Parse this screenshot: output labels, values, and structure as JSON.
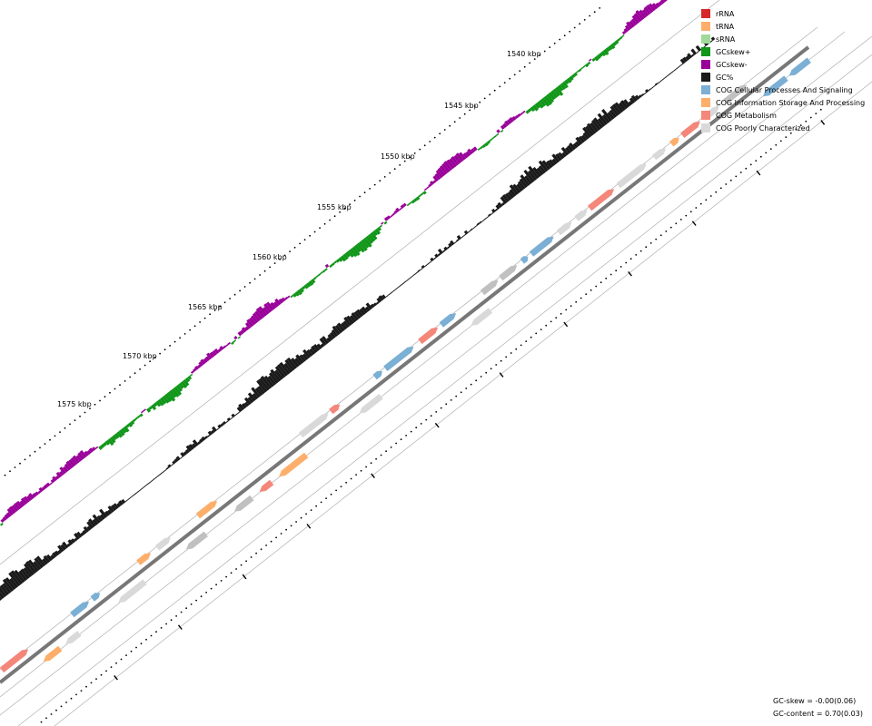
{
  "map": {
    "scale_labels": [
      "1540 kbp",
      "1545 kbp",
      "1550 kbp",
      "1555 kbp",
      "1560 kbp",
      "1565 kbp",
      "1570 kbp",
      "1575 kbp"
    ]
  },
  "legend": [
    {
      "label": "rRNA",
      "color": "#d62728"
    },
    {
      "label": "tRNA",
      "color": "#fdae6b"
    },
    {
      "label": "sRNA",
      "color": "#a1d99b"
    },
    {
      "label": "GCskew+",
      "color": "#109618"
    },
    {
      "label": "GCskew-",
      "color": "#990099"
    },
    {
      "label": "GC%",
      "color": "#1a1a1a"
    },
    {
      "label": "COG Cellular Processes And Signaling",
      "color": "#7bafd4"
    },
    {
      "label": "COG Information Storage And Processing",
      "color": "#fdae6b"
    },
    {
      "label": "COG Metabolism",
      "color": "#f4877a"
    },
    {
      "label": "COG Poorly Characterized",
      "color": "#d9d9d9"
    }
  ],
  "stats": {
    "gc_skew": "GC-skew = -0.00(0.06)",
    "gc_content": "GC-content = 0.70(0.03)"
  }
}
